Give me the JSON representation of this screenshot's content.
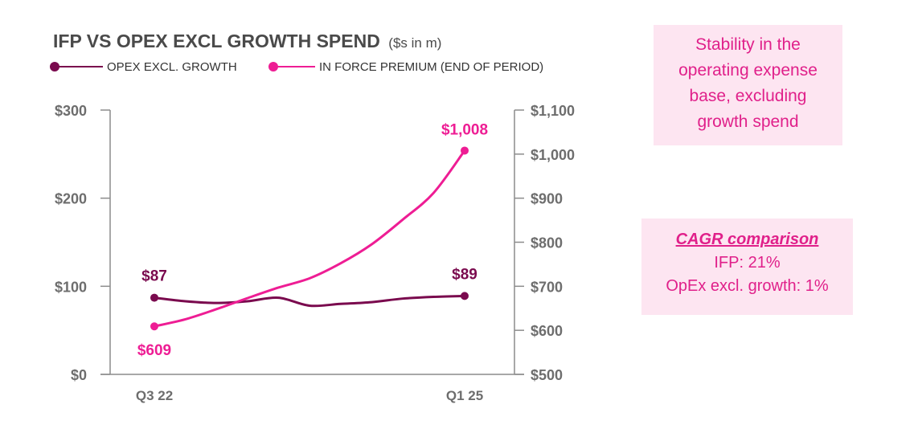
{
  "chart_data": {
    "type": "line",
    "title": "IFP VS OPEX EXCL GROWTH SPEND",
    "subtitle": "($s in m)",
    "categories": [
      "Q3 22",
      "",
      "",
      "",
      "",
      "",
      "",
      "",
      "",
      "",
      "Q1 25"
    ],
    "series": [
      {
        "name": "OPEX EXCL. GROWTH",
        "axis": "left",
        "color": "#7a0a4e",
        "values": [
          87,
          83,
          81,
          83,
          87,
          78,
          80,
          82,
          86,
          88,
          89
        ],
        "labels": {
          "0": "$87",
          "10": "$89"
        }
      },
      {
        "name": "IN FORCE PREMIUM (END OF PERIOD)",
        "axis": "right",
        "color": "#ee1d94",
        "values": [
          609,
          625,
          648,
          673,
          697,
          718,
          752,
          795,
          851,
          912,
          1008
        ],
        "labels": {
          "0": "$609",
          "10": "$1,008"
        }
      }
    ],
    "y_left": {
      "min": 0,
      "max": 300,
      "ticks": [
        0,
        100,
        200,
        300
      ],
      "tick_labels": [
        "$0",
        "$100",
        "$200",
        "$300"
      ]
    },
    "y_right": {
      "min": 500,
      "max": 1100,
      "ticks": [
        500,
        600,
        700,
        800,
        900,
        1000,
        1100
      ],
      "tick_labels": [
        "$500",
        "$600",
        "$700",
        "$800",
        "$900",
        "$1,000",
        "$1,100"
      ]
    },
    "grid": false,
    "legend_position": "top-left"
  },
  "callouts": {
    "stability": "Stability in the operating expense base, excluding growth spend",
    "cagr": {
      "heading": "CAGR comparison",
      "ifp": "IFP: 21%",
      "opex": "OpEx excl. growth: 1%"
    }
  },
  "colors": {
    "opex": "#7a0a4e",
    "ifp": "#ee1d94",
    "axis": "#8c8c8c",
    "callout_bg": "#fde5f1",
    "callout_text": "#e0208a"
  }
}
